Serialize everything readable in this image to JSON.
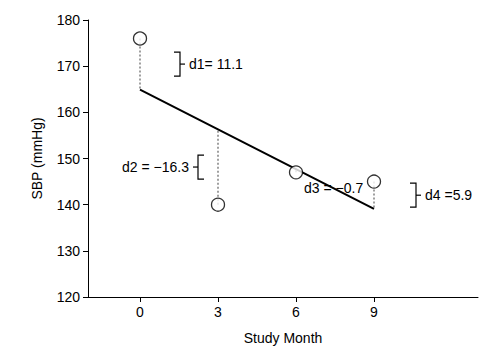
{
  "chart_data": {
    "type": "scatter",
    "x_label": "Study Month",
    "y_label": "SBP (mmHg)",
    "x": [
      0,
      3,
      6,
      9
    ],
    "values": [
      176,
      140,
      147,
      145
    ],
    "color": "#000000",
    "marker": "circle",
    "fit_line": {
      "values": [
        164.9,
        156.3,
        147.7,
        139.1
      ],
      "color": "#000000",
      "line_style": "solid"
    },
    "residuals": {
      "values": [
        11.1,
        -16.3,
        -0.7,
        5.9
      ],
      "labels": [
        "d1= 11.1",
        "d2 = −16.3",
        "d3 = −0.7",
        "d4 =5.9"
      ],
      "color": "#808080",
      "line_style": "dotted"
    },
    "xlim": [
      -2,
      13
    ],
    "xticks": [
      0,
      3,
      6,
      9
    ],
    "ylim": [
      120,
      180
    ],
    "yticks": [
      120,
      130,
      140,
      150,
      160,
      170,
      180
    ],
    "grid": false
  }
}
